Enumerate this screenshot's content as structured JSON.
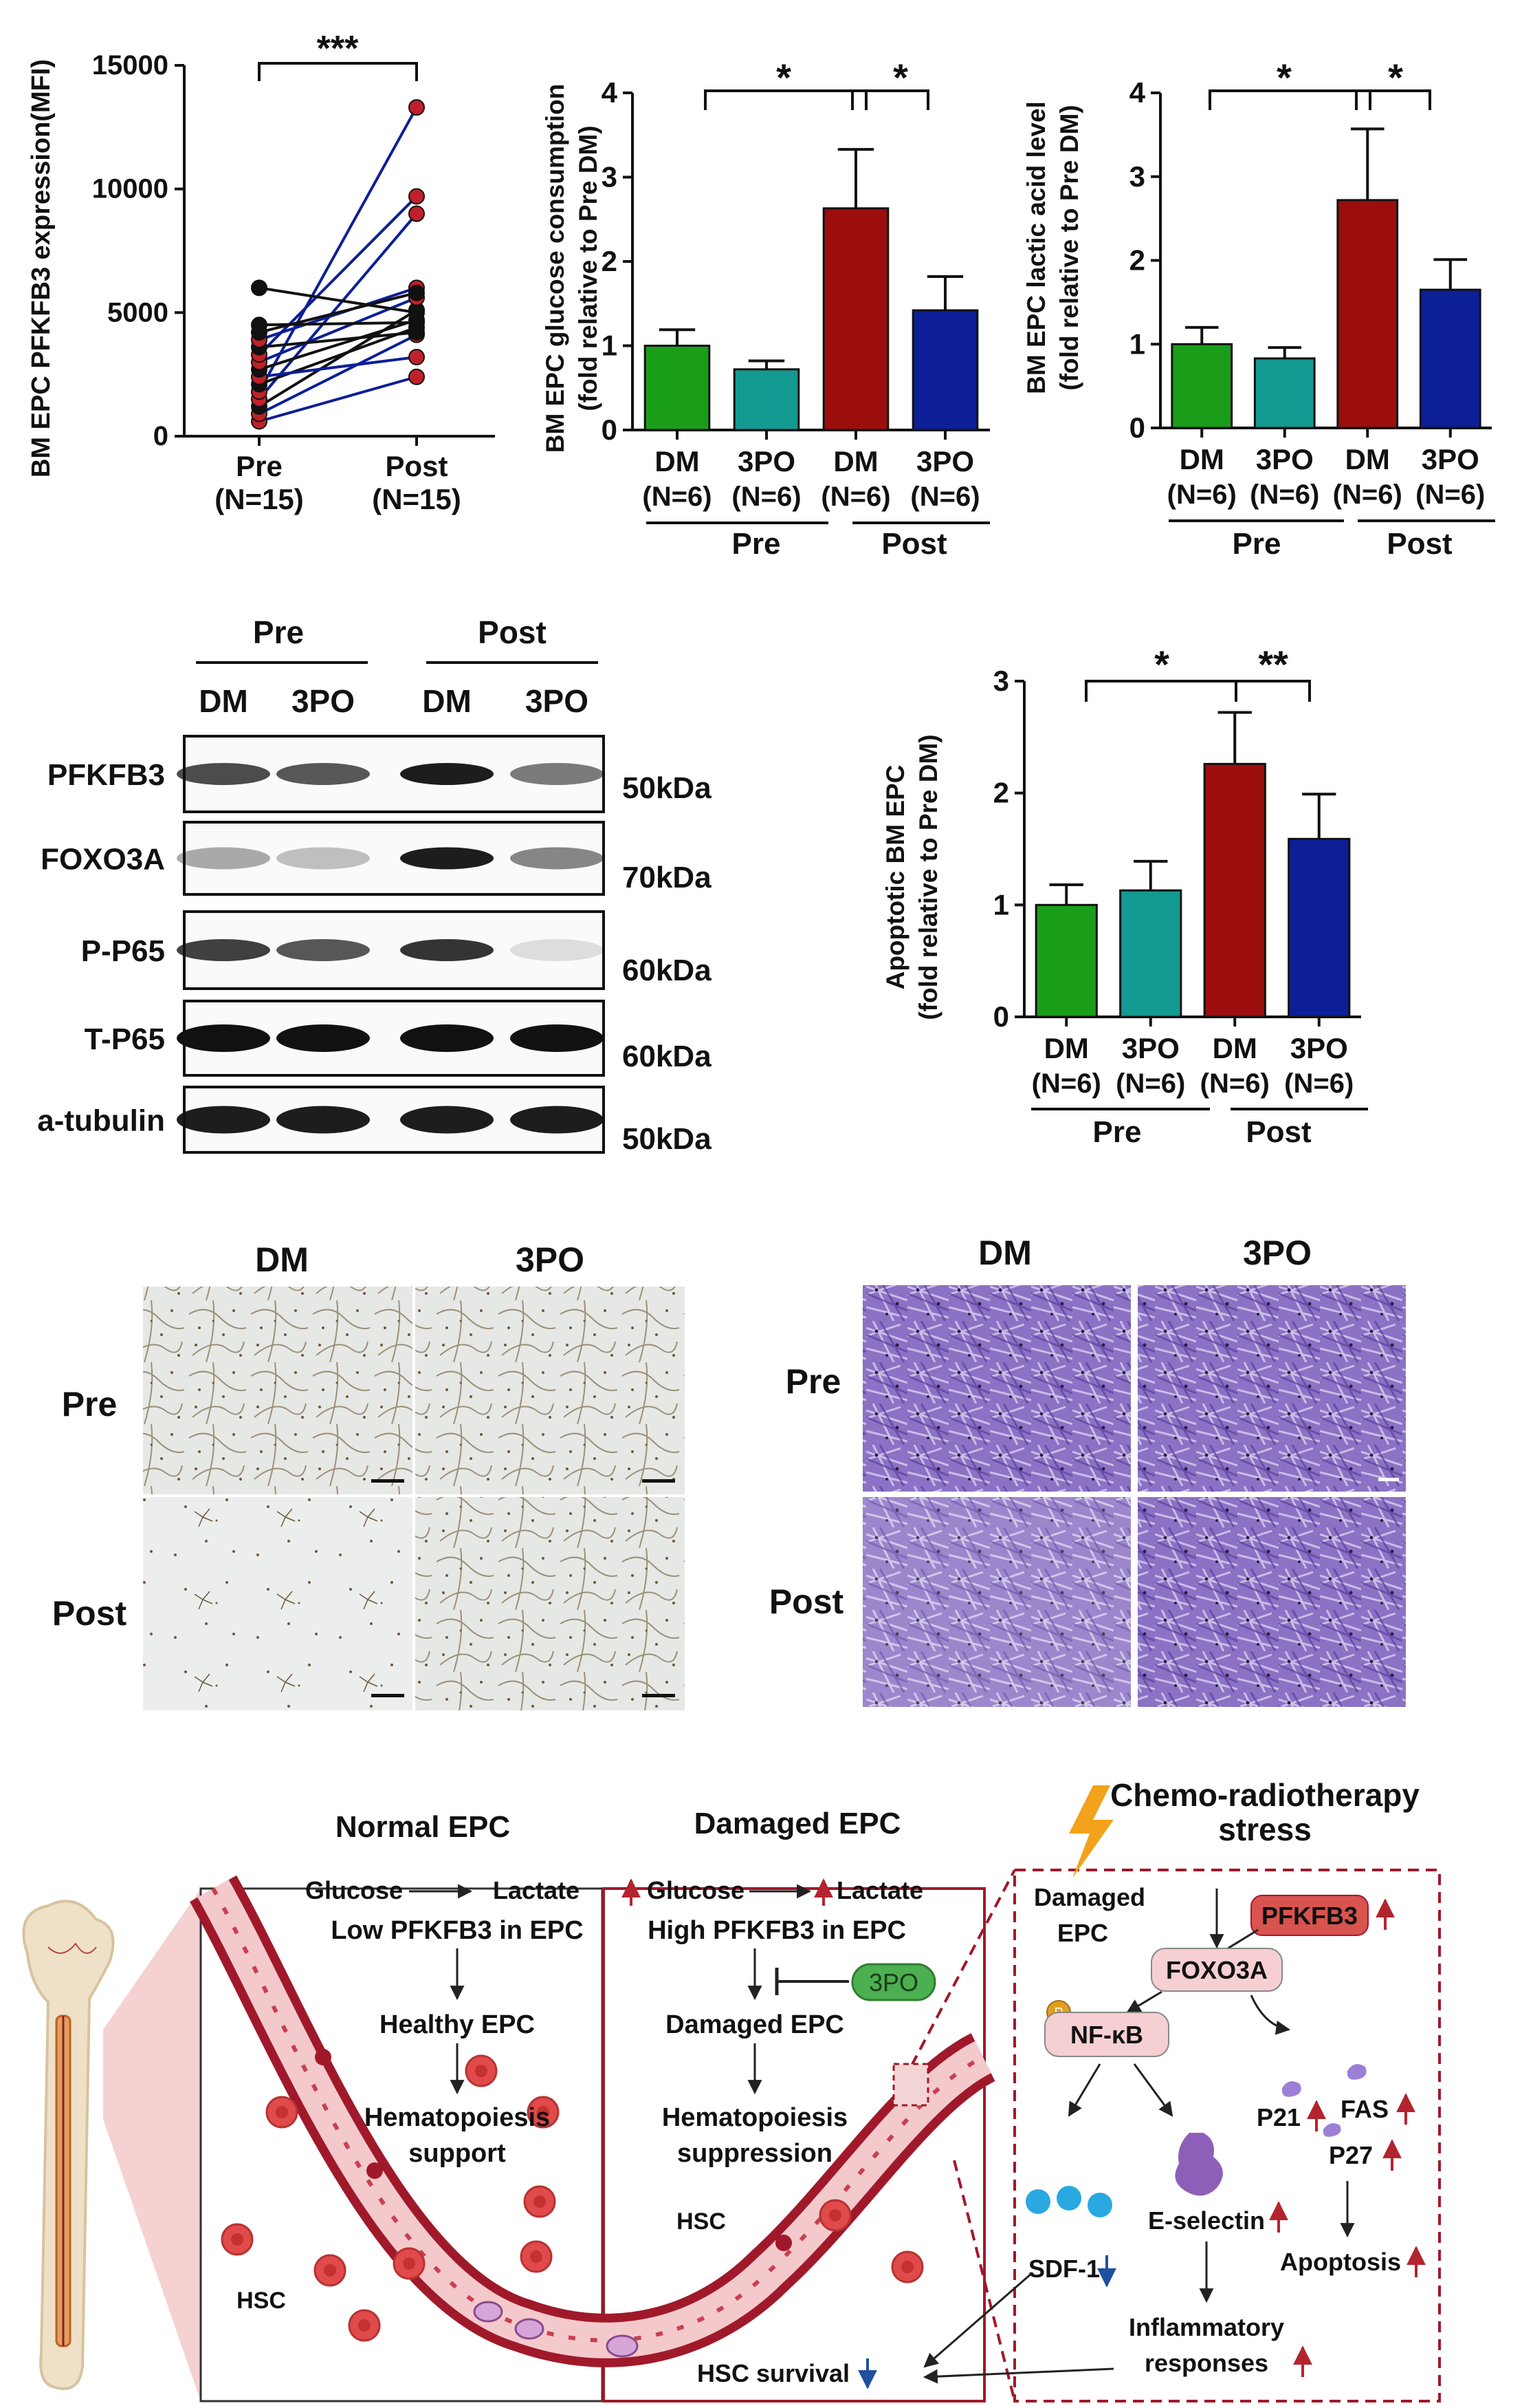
{
  "panel_a": {
    "ylabel": "BM EPC PFKFB3 expression(MFI)",
    "yticks": [
      "0",
      "5000",
      "10000",
      "15000"
    ],
    "x_groups": [
      {
        "name": "Pre",
        "n": "(N=15)"
      },
      {
        "name": "Post",
        "n": "(N=15)"
      }
    ],
    "sig": "***"
  },
  "panel_b": {
    "ylabel_1": "BM EPC glucose consumption",
    "ylabel_2": "(fold relative to Pre DM)",
    "yticks": [
      "0",
      "1",
      "2",
      "3",
      "4"
    ],
    "bars": [
      {
        "label": "DM",
        "n": "(N=6)"
      },
      {
        "label": "3PO",
        "n": "(N=6)"
      },
      {
        "label": "DM",
        "n": "(N=6)"
      },
      {
        "label": "3PO",
        "n": "(N=6)"
      }
    ],
    "groups": [
      "Pre",
      "Post"
    ],
    "sig": [
      "*",
      "*"
    ]
  },
  "panel_c": {
    "ylabel_1": "BM EPC lactic acid level",
    "ylabel_2": "(fold relative to Pre DM)",
    "yticks": [
      "0",
      "1",
      "2",
      "3",
      "4"
    ],
    "bars": [
      {
        "label": "DM",
        "n": "(N=6)"
      },
      {
        "label": "3PO",
        "n": "(N=6)"
      },
      {
        "label": "DM",
        "n": "(N=6)"
      },
      {
        "label": "3PO",
        "n": "(N=6)"
      }
    ],
    "groups": [
      "Pre",
      "Post"
    ],
    "sig": [
      "*",
      "*"
    ]
  },
  "western": {
    "groups": [
      "Pre",
      "Post"
    ],
    "lanes": [
      "DM",
      "3PO",
      "DM",
      "3PO"
    ],
    "proteins": [
      {
        "name": "PFKFB3",
        "kda": "50kDa"
      },
      {
        "name": "FOXO3A",
        "kda": "70kDa"
      },
      {
        "name": "P-P65",
        "kda": "60kDa"
      },
      {
        "name": "T-P65",
        "kda": "60kDa"
      },
      {
        "name": "a-tubulin",
        "kda": "50kDa"
      }
    ]
  },
  "panel_d": {
    "ylabel_1": "Apoptotic BM EPC",
    "ylabel_2": "(fold relative to Pre DM)",
    "yticks": [
      "0",
      "1",
      "2",
      "3"
    ],
    "bars": [
      {
        "label": "DM",
        "n": "(N=6)"
      },
      {
        "label": "3PO",
        "n": "(N=6)"
      },
      {
        "label": "DM",
        "n": "(N=6)"
      },
      {
        "label": "3PO",
        "n": "(N=6)"
      }
    ],
    "groups": [
      "Pre",
      "Post"
    ],
    "sig": [
      "*",
      "**"
    ]
  },
  "micro_tube": {
    "cols": [
      "DM",
      "3PO"
    ],
    "rows": [
      "Pre",
      "Post"
    ]
  },
  "micro_migration": {
    "cols": [
      "DM",
      "3PO"
    ],
    "rows": [
      "Pre",
      "Post"
    ]
  },
  "schematic": {
    "normal_title": "Normal EPC",
    "damaged_title": "Damaged EPC",
    "stress_title_1": "Chemo-radiotherapy",
    "stress_title_2": "stress",
    "normal": {
      "glucose": "Glucose",
      "lactate": "Lactate",
      "low": "Low PFKFB3 in EPC",
      "healthy": "Healthy EPC",
      "hema1": "Hematopoiesis",
      "hema2": "support",
      "hsc": "HSC"
    },
    "damaged": {
      "glucose": "Glucose",
      "lactate": "Lactate",
      "high": "High PFKFB3 in EPC",
      "inhibitor": "3PO",
      "damaged": "Damaged EPC",
      "hema1": "Hematopoiesis",
      "hema2": "suppression",
      "hsc": "HSC",
      "survival": "HSC survival"
    },
    "stress": {
      "damaged1": "Damaged",
      "damaged2": "EPC",
      "pfkfb3": "PFKFB3",
      "foxo3a": "FOXO3A",
      "p": "P",
      "nfkb": "NF-κB",
      "p21": "P21",
      "fas": "FAS",
      "p27": "P27",
      "eselectin": "E-selectin",
      "sdf1": "SDF-1",
      "apoptosis": "Apoptosis",
      "inflam1": "Inflammatory",
      "inflam2": "responses"
    },
    "colors": {
      "vessel": "#a0192a",
      "highlight": "#b3242f",
      "blue_arrow": "#1f4fa0"
    }
  },
  "chart_data": [
    {
      "type": "scatter",
      "panel": "paired before-after",
      "ylabel": "BM EPC PFKFB3 expression(MFI)",
      "ylim": [
        0,
        15000
      ],
      "categories": [
        "Pre",
        "Post"
      ],
      "pairs": [
        [
          600,
          2400
        ],
        [
          900,
          4100
        ],
        [
          1200,
          5100
        ],
        [
          1500,
          9000
        ],
        [
          1800,
          13300
        ],
        [
          2100,
          4400
        ],
        [
          2400,
          3200
        ],
        [
          2700,
          4700
        ],
        [
          3000,
          5600
        ],
        [
          3300,
          9700
        ],
        [
          3600,
          4200
        ],
        [
          3900,
          6000
        ],
        [
          4200,
          5800
        ],
        [
          4500,
          4600
        ],
        [
          6000,
          5000
        ]
      ],
      "pair_colors": [
        "blue",
        "blue",
        "black",
        "blue",
        "blue",
        "black",
        "blue",
        "black",
        "blue",
        "blue",
        "black",
        "blue",
        "black",
        "black",
        "black"
      ],
      "sig": "***"
    },
    {
      "type": "bar",
      "ylabel": "BM EPC glucose consumption (fold relative to Pre DM)",
      "ylim": [
        0,
        4
      ],
      "categories": [
        "Pre DM",
        "Pre 3PO",
        "Post DM",
        "Post 3PO"
      ],
      "values": [
        1.0,
        0.72,
        2.63,
        1.42
      ],
      "errors": [
        0.19,
        0.1,
        0.7,
        0.4
      ],
      "colors": [
        "#1a9e1a",
        "#139a92",
        "#9c0e0e",
        "#0d1f96"
      ]
    },
    {
      "type": "bar",
      "ylabel": "BM EPC lactic acid level (fold relative to Pre DM)",
      "ylim": [
        0,
        4
      ],
      "categories": [
        "Pre DM",
        "Pre 3PO",
        "Post DM",
        "Post 3PO"
      ],
      "values": [
        1.0,
        0.83,
        2.72,
        1.65
      ],
      "errors": [
        0.2,
        0.13,
        0.85,
        0.36
      ],
      "colors": [
        "#1a9e1a",
        "#139a92",
        "#9c0e0e",
        "#0d1f96"
      ]
    },
    {
      "type": "bar",
      "ylabel": "Apoptotic BM EPC (fold relative to Pre DM)",
      "ylim": [
        0,
        3
      ],
      "categories": [
        "Pre DM",
        "Pre 3PO",
        "Post DM",
        "Post 3PO"
      ],
      "values": [
        1.0,
        1.13,
        2.26,
        1.59
      ],
      "errors": [
        0.18,
        0.26,
        0.46,
        0.4
      ],
      "colors": [
        "#1a9e1a",
        "#139a92",
        "#9c0e0e",
        "#0d1f96"
      ]
    }
  ]
}
